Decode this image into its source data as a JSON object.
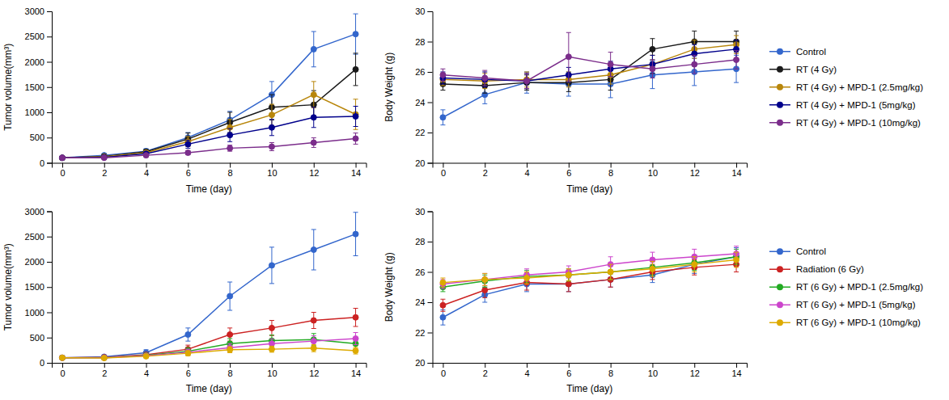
{
  "chart_data": [
    {
      "type": "line",
      "x_label": "Time (day)",
      "y_label": "Tumor volume(mm³)",
      "x": [
        0,
        2,
        4,
        6,
        8,
        10,
        12,
        14
      ],
      "xlim": [
        -0.5,
        14.5
      ],
      "xticks": [
        0,
        2,
        4,
        6,
        8,
        10,
        12,
        14
      ],
      "ylim": [
        0,
        3000
      ],
      "yticks": [
        0,
        500,
        1000,
        1500,
        2000,
        2500,
        3000
      ],
      "grid": false,
      "marker": "circle",
      "series": [
        {
          "name": "Control",
          "color": "#3366CC",
          "values": [
            100,
            150,
            230,
            500,
            850,
            1350,
            2250,
            2550
          ],
          "errors": [
            15,
            25,
            50,
            100,
            170,
            260,
            350,
            400
          ]
        },
        {
          "name": "RT (4 Gy)",
          "color": "#1a1a1a",
          "values": [
            100,
            130,
            220,
            470,
            800,
            1100,
            1150,
            1850
          ],
          "errors": [
            15,
            25,
            45,
            120,
            200,
            250,
            280,
            320
          ]
        },
        {
          "name": "RT (4 Gy) + MPD-1 (2.5mg/kg)",
          "color": "#B8860B",
          "values": [
            100,
            120,
            200,
            420,
            700,
            950,
            1350,
            960
          ],
          "errors": [
            15,
            20,
            40,
            100,
            160,
            210,
            260,
            300
          ]
        },
        {
          "name": "RT (4 Gy) + MPD-1 (5mg/kg)",
          "color": "#00008B",
          "values": [
            100,
            110,
            180,
            370,
            550,
            700,
            900,
            920
          ],
          "errors": [
            12,
            18,
            35,
            80,
            130,
            160,
            200,
            200
          ]
        },
        {
          "name": "RT (4 Gy) + MPD-1 (10mg/kg)",
          "color": "#7B2D8B",
          "values": [
            100,
            100,
            150,
            200,
            290,
            320,
            400,
            480
          ],
          "errors": [
            10,
            15,
            25,
            40,
            60,
            80,
            95,
            110
          ]
        }
      ]
    },
    {
      "type": "line",
      "x_label": "Time (day)",
      "y_label": "Body Weight (g)",
      "x": [
        0,
        2,
        4,
        6,
        8,
        10,
        12,
        14
      ],
      "xlim": [
        -0.5,
        14.5
      ],
      "xticks": [
        0,
        2,
        4,
        6,
        8,
        10,
        12,
        14
      ],
      "ylim": [
        20,
        30
      ],
      "yticks": [
        20,
        22,
        24,
        26,
        28,
        30
      ],
      "grid": false,
      "marker": "circle",
      "legend": "right",
      "series": [
        {
          "name": "Control",
          "color": "#3366CC",
          "values": [
            23.0,
            24.5,
            25.3,
            25.2,
            25.2,
            25.8,
            26.0,
            26.2
          ],
          "errors": [
            0.5,
            0.6,
            0.7,
            0.8,
            0.9,
            0.9,
            0.9,
            0.9
          ]
        },
        {
          "name": "RT (4 Gy)",
          "color": "#1a1a1a",
          "values": [
            25.2,
            25.1,
            25.3,
            25.3,
            25.5,
            27.5,
            28.0,
            28.0
          ],
          "errors": [
            0.4,
            0.5,
            0.5,
            0.6,
            0.7,
            0.7,
            0.7,
            0.7
          ]
        },
        {
          "name": "RT (4 Gy) + MPD-1 (2.5mg/kg)",
          "color": "#B8860B",
          "values": [
            25.5,
            25.4,
            25.5,
            25.5,
            25.8,
            26.5,
            27.5,
            27.8
          ],
          "errors": [
            0.4,
            0.5,
            0.5,
            0.5,
            0.6,
            0.6,
            0.6,
            0.6
          ]
        },
        {
          "name": "RT (4 Gy) + MPD-1 (5mg/kg)",
          "color": "#00008B",
          "values": [
            25.6,
            25.5,
            25.4,
            25.8,
            26.2,
            26.5,
            27.2,
            27.5
          ],
          "errors": [
            0.4,
            0.5,
            0.5,
            0.5,
            0.5,
            0.6,
            0.6,
            0.6
          ]
        },
        {
          "name": "RT (4 Gy) + MPD-1 (10mg/kg)",
          "color": "#7B2D8B",
          "values": [
            25.8,
            25.6,
            25.4,
            27.0,
            26.5,
            26.2,
            26.5,
            26.8
          ],
          "errors": [
            0.4,
            0.5,
            0.5,
            1.6,
            0.8,
            0.6,
            0.6,
            0.6
          ]
        }
      ]
    },
    {
      "type": "line",
      "x_label": "Time (day)",
      "y_label": "Tumor volume(mm³)",
      "x": [
        0,
        2,
        4,
        6,
        8,
        10,
        12,
        14
      ],
      "xlim": [
        -0.5,
        14.5
      ],
      "xticks": [
        0,
        2,
        4,
        6,
        8,
        10,
        12,
        14
      ],
      "ylim": [
        0,
        3000
      ],
      "yticks": [
        0,
        500,
        1000,
        1500,
        2000,
        2500,
        3000
      ],
      "grid": false,
      "marker": "circle",
      "series": [
        {
          "name": "Control",
          "color": "#3366CC",
          "values": [
            100,
            120,
            200,
            560,
            1320,
            1930,
            2240,
            2550
          ],
          "errors": [
            20,
            30,
            60,
            130,
            280,
            360,
            400,
            430
          ]
        },
        {
          "name": "Radiation (6 Gy)",
          "color": "#CC2222",
          "values": [
            100,
            110,
            160,
            270,
            560,
            690,
            840,
            900
          ],
          "errors": [
            15,
            20,
            40,
            80,
            130,
            150,
            160,
            180
          ]
        },
        {
          "name": "RT (6 Gy) + MPD-1 (2.5mg/kg)",
          "color": "#22AA22",
          "values": [
            100,
            100,
            150,
            230,
            380,
            440,
            460,
            380
          ],
          "errors": [
            12,
            18,
            35,
            70,
            100,
            110,
            120,
            110
          ]
        },
        {
          "name": "RT (6 Gy) + MPD-1 (5mg/kg)",
          "color": "#CC44CC",
          "values": [
            100,
            100,
            140,
            210,
            300,
            380,
            430,
            480
          ],
          "errors": [
            12,
            18,
            30,
            60,
            80,
            95,
            105,
            120
          ]
        },
        {
          "name": "RT (6 Gy) + MPD-1 (10mg/kg)",
          "color": "#DDAA00",
          "values": [
            100,
            95,
            130,
            190,
            260,
            270,
            290,
            240
          ],
          "errors": [
            10,
            15,
            25,
            50,
            60,
            60,
            70,
            65
          ]
        }
      ]
    },
    {
      "type": "line",
      "x_label": "Time (day)",
      "y_label": "Body Weight (g)",
      "x": [
        0,
        2,
        4,
        6,
        8,
        10,
        12,
        14
      ],
      "xlim": [
        -0.5,
        14.5
      ],
      "xticks": [
        0,
        2,
        4,
        6,
        8,
        10,
        12,
        14
      ],
      "ylim": [
        20,
        30
      ],
      "yticks": [
        20,
        22,
        24,
        26,
        28,
        30
      ],
      "grid": false,
      "marker": "circle",
      "legend": "right",
      "series": [
        {
          "name": "Control",
          "color": "#3366CC",
          "values": [
            23.0,
            24.5,
            25.2,
            25.2,
            25.5,
            25.8,
            26.5,
            27.0
          ],
          "errors": [
            0.5,
            0.5,
            0.5,
            0.5,
            0.5,
            0.5,
            0.6,
            0.6
          ]
        },
        {
          "name": "Radiation (6 Gy)",
          "color": "#CC2222",
          "values": [
            23.8,
            24.8,
            25.3,
            25.2,
            25.5,
            26.0,
            26.3,
            26.5
          ],
          "errors": [
            0.4,
            0.5,
            0.5,
            0.5,
            0.5,
            0.5,
            0.5,
            0.5
          ]
        },
        {
          "name": "RT (6 Gy) + MPD-1 (2.5mg/kg)",
          "color": "#22AA22",
          "values": [
            25.0,
            25.4,
            25.7,
            25.8,
            26.0,
            26.3,
            26.6,
            27.0
          ],
          "errors": [
            0.3,
            0.4,
            0.4,
            0.4,
            0.5,
            0.5,
            0.5,
            0.5
          ]
        },
        {
          "name": "RT (6 Gy) + MPD-1 (5mg/kg)",
          "color": "#CC44CC",
          "values": [
            25.2,
            25.5,
            25.8,
            26.0,
            26.5,
            26.8,
            27.0,
            27.2
          ],
          "errors": [
            0.3,
            0.4,
            0.4,
            0.4,
            0.5,
            0.5,
            0.5,
            0.5
          ]
        },
        {
          "name": "RT (6 Gy) + MPD-1 (10mg/kg)",
          "color": "#DDAA00",
          "values": [
            25.3,
            25.5,
            25.6,
            25.8,
            26.0,
            26.2,
            26.5,
            26.8
          ],
          "errors": [
            0.3,
            0.4,
            0.4,
            0.4,
            0.5,
            0.5,
            0.5,
            0.5
          ]
        }
      ]
    }
  ]
}
